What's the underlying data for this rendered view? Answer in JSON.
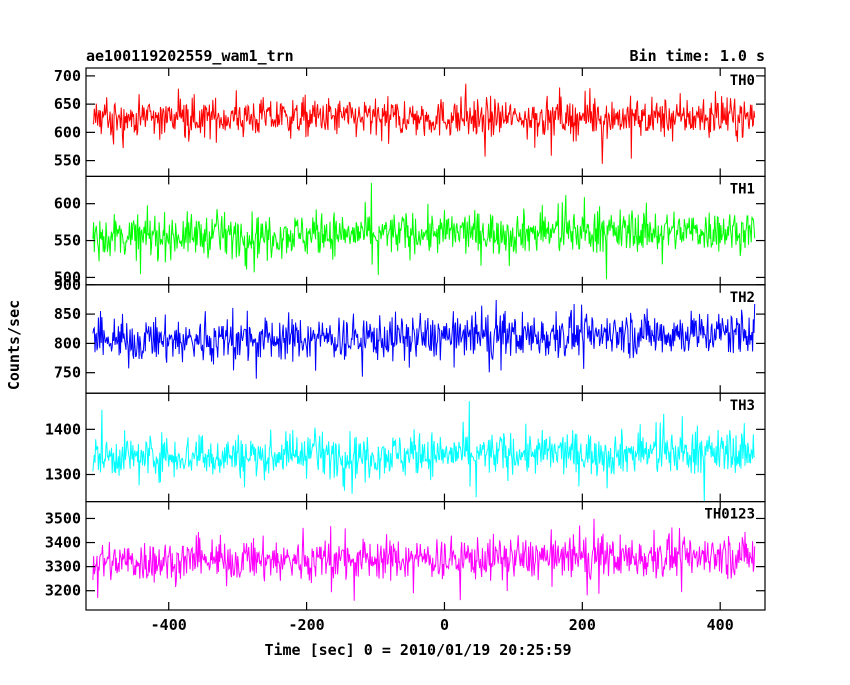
{
  "header": {
    "title": "ae100119202559_wam1_trn",
    "bin_time": "Bin time: 1.0 s"
  },
  "chart_data": {
    "type": "line",
    "x_range": [
      -510,
      450
    ],
    "xlim": [
      -520,
      465
    ],
    "x_ticks": [
      -400,
      -200,
      0,
      200,
      400
    ],
    "xlabel": "Time [sec] 0 = 2010/01/19 20:25:59",
    "ylabel": "Counts/sec",
    "panels": [
      {
        "name": "TH0",
        "color": "#ff0000",
        "ylim": [
          522,
          714
        ],
        "y_ticks": [
          550,
          600,
          650,
          700
        ],
        "mean": 626,
        "noise": 24,
        "spike": 26,
        "trend": 0
      },
      {
        "name": "TH1",
        "color": "#00ff00",
        "ylim": [
          490,
          637
        ],
        "y_ticks": [
          500,
          550,
          600
        ],
        "mean": 556,
        "noise": 20,
        "spike": 22,
        "trend": 8
      },
      {
        "name": "TH2",
        "color": "#0000ff",
        "ylim": [
          715,
          900
        ],
        "y_ticks": [
          750,
          800,
          850,
          900
        ],
        "mean": 803,
        "noise": 27,
        "spike": 28,
        "trend": 16
      },
      {
        "name": "TH3",
        "color": "#00ffff",
        "ylim": [
          1240,
          1480
        ],
        "y_ticks": [
          1300,
          1400
        ],
        "mean": 1340,
        "noise": 33,
        "spike": 38,
        "trend": 10
      },
      {
        "name": "TH0123",
        "color": "#ff00ff",
        "ylim": [
          3120,
          3570
        ],
        "y_ticks": [
          3200,
          3300,
          3400,
          3500
        ],
        "mean": 3320,
        "noise": 62,
        "spike": 75,
        "trend": 25
      }
    ]
  }
}
